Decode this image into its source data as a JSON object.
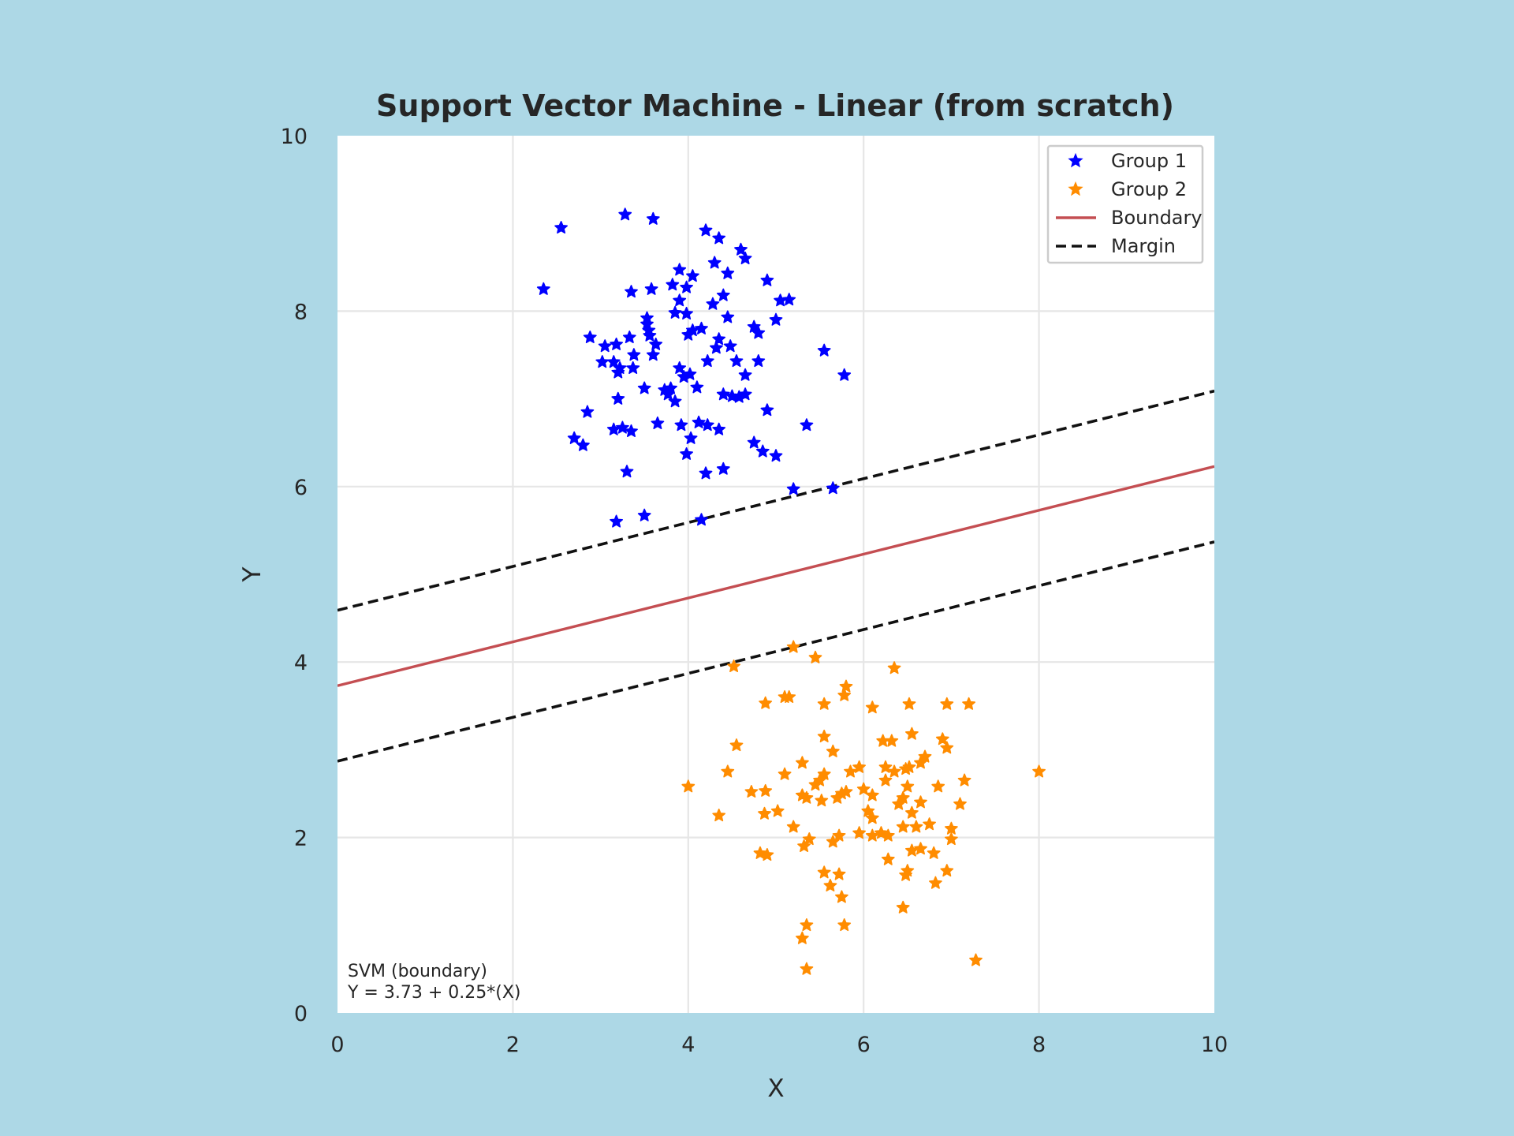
{
  "colors": {
    "background": "#add8e6",
    "plot_bg": "#ffffff",
    "grid": "#e6e6e6",
    "group1": "#0000ff",
    "group2": "#ff8c00",
    "boundary": "#c44e52",
    "margin": "#111111"
  },
  "chart_data": {
    "type": "scatter",
    "title": "Support Vector Machine - Linear (from scratch)",
    "xlabel": "X",
    "ylabel": "Y",
    "xlim": [
      0,
      10
    ],
    "ylim": [
      0,
      10
    ],
    "xticks": [
      0,
      2,
      4,
      6,
      8,
      10
    ],
    "yticks": [
      0,
      2,
      4,
      6,
      8,
      10
    ],
    "grid": true,
    "legend_position": "top-right",
    "marker": "star",
    "annotation": [
      "SVM (boundary)",
      "Y = 3.73 + 0.25*(X)"
    ],
    "lines": [
      {
        "name": "Boundary",
        "style": "solid",
        "intercept": 3.73,
        "slope": 0.25
      },
      {
        "name": "Margin",
        "style": "dashed",
        "intercept": 4.59,
        "slope": 0.25
      },
      {
        "name": "Margin",
        "style": "dashed",
        "intercept": 2.87,
        "slope": 0.25
      }
    ],
    "series": [
      {
        "name": "Group 1",
        "points": [
          [
            2.55,
            8.95
          ],
          [
            3.28,
            9.1
          ],
          [
            3.6,
            9.05
          ],
          [
            2.35,
            8.25
          ],
          [
            4.2,
            8.92
          ],
          [
            4.35,
            8.83
          ],
          [
            4.6,
            8.7
          ],
          [
            4.65,
            8.6
          ],
          [
            4.05,
            8.4
          ],
          [
            3.9,
            8.47
          ],
          [
            4.45,
            8.43
          ],
          [
            4.3,
            8.55
          ],
          [
            3.35,
            8.22
          ],
          [
            3.58,
            8.25
          ],
          [
            3.82,
            8.3
          ],
          [
            3.98,
            8.27
          ],
          [
            4.9,
            8.35
          ],
          [
            4.4,
            8.18
          ],
          [
            4.28,
            8.08
          ],
          [
            5.05,
            8.12
          ],
          [
            5.15,
            8.13
          ],
          [
            3.9,
            8.12
          ],
          [
            3.85,
            7.98
          ],
          [
            3.98,
            7.97
          ],
          [
            4.45,
            7.93
          ],
          [
            5.0,
            7.9
          ],
          [
            3.53,
            7.92
          ],
          [
            3.53,
            7.85
          ],
          [
            3.55,
            7.78
          ],
          [
            3.56,
            7.72
          ],
          [
            4.05,
            7.78
          ],
          [
            4.15,
            7.8
          ],
          [
            4.0,
            7.73
          ],
          [
            4.35,
            7.68
          ],
          [
            4.75,
            7.82
          ],
          [
            4.8,
            7.75
          ],
          [
            2.88,
            7.7
          ],
          [
            3.33,
            7.7
          ],
          [
            3.63,
            7.62
          ],
          [
            3.05,
            7.6
          ],
          [
            3.18,
            7.62
          ],
          [
            4.32,
            7.58
          ],
          [
            4.48,
            7.6
          ],
          [
            5.55,
            7.55
          ],
          [
            3.6,
            7.5
          ],
          [
            3.38,
            7.5
          ],
          [
            3.02,
            7.42
          ],
          [
            3.15,
            7.42
          ],
          [
            3.22,
            7.35
          ],
          [
            3.2,
            7.3
          ],
          [
            3.37,
            7.35
          ],
          [
            3.9,
            7.35
          ],
          [
            4.22,
            7.43
          ],
          [
            4.55,
            7.43
          ],
          [
            4.8,
            7.43
          ],
          [
            4.02,
            7.28
          ],
          [
            3.95,
            7.25
          ],
          [
            4.65,
            7.27
          ],
          [
            5.78,
            7.27
          ],
          [
            3.8,
            7.12
          ],
          [
            3.73,
            7.1
          ],
          [
            3.77,
            7.05
          ],
          [
            3.5,
            7.12
          ],
          [
            4.1,
            7.13
          ],
          [
            3.85,
            6.97
          ],
          [
            3.2,
            7.0
          ],
          [
            4.4,
            7.05
          ],
          [
            4.5,
            7.03
          ],
          [
            4.58,
            7.02
          ],
          [
            4.65,
            7.05
          ],
          [
            2.85,
            6.85
          ],
          [
            4.9,
            6.87
          ],
          [
            3.65,
            6.72
          ],
          [
            3.92,
            6.7
          ],
          [
            4.12,
            6.73
          ],
          [
            4.22,
            6.7
          ],
          [
            5.35,
            6.7
          ],
          [
            3.25,
            6.67
          ],
          [
            3.15,
            6.65
          ],
          [
            3.35,
            6.63
          ],
          [
            4.35,
            6.65
          ],
          [
            4.03,
            6.55
          ],
          [
            2.7,
            6.55
          ],
          [
            2.8,
            6.47
          ],
          [
            4.75,
            6.5
          ],
          [
            4.85,
            6.4
          ],
          [
            5.0,
            6.35
          ],
          [
            3.98,
            6.37
          ],
          [
            3.3,
            6.17
          ],
          [
            4.2,
            6.15
          ],
          [
            4.4,
            6.2
          ],
          [
            5.2,
            5.97
          ],
          [
            5.65,
            5.98
          ],
          [
            3.18,
            5.6
          ],
          [
            3.5,
            5.67
          ],
          [
            4.15,
            5.62
          ]
        ]
      },
      {
        "name": "Group 2",
        "points": [
          [
            5.2,
            4.17
          ],
          [
            5.45,
            4.05
          ],
          [
            4.52,
            3.95
          ],
          [
            6.35,
            3.93
          ],
          [
            5.8,
            3.72
          ],
          [
            5.78,
            3.62
          ],
          [
            5.1,
            3.6
          ],
          [
            5.15,
            3.6
          ],
          [
            4.88,
            3.53
          ],
          [
            5.55,
            3.52
          ],
          [
            6.1,
            3.48
          ],
          [
            6.52,
            3.52
          ],
          [
            6.95,
            3.52
          ],
          [
            7.2,
            3.52
          ],
          [
            5.55,
            3.15
          ],
          [
            6.22,
            3.1
          ],
          [
            6.32,
            3.1
          ],
          [
            6.55,
            3.18
          ],
          [
            6.9,
            3.12
          ],
          [
            4.55,
            3.05
          ],
          [
            5.65,
            2.98
          ],
          [
            6.95,
            3.02
          ],
          [
            6.7,
            2.92
          ],
          [
            5.3,
            2.85
          ],
          [
            5.95,
            2.8
          ],
          [
            6.25,
            2.8
          ],
          [
            6.48,
            2.78
          ],
          [
            6.35,
            2.75
          ],
          [
            6.52,
            2.8
          ],
          [
            6.65,
            2.85
          ],
          [
            5.85,
            2.75
          ],
          [
            5.1,
            2.72
          ],
          [
            5.55,
            2.72
          ],
          [
            4.45,
            2.75
          ],
          [
            8.0,
            2.75
          ],
          [
            5.5,
            2.65
          ],
          [
            5.45,
            2.6
          ],
          [
            6.25,
            2.65
          ],
          [
            6.5,
            2.58
          ],
          [
            6.85,
            2.58
          ],
          [
            7.15,
            2.65
          ],
          [
            4.0,
            2.58
          ],
          [
            4.72,
            2.52
          ],
          [
            4.88,
            2.53
          ],
          [
            5.75,
            2.5
          ],
          [
            5.8,
            2.52
          ],
          [
            5.7,
            2.45
          ],
          [
            5.3,
            2.48
          ],
          [
            5.35,
            2.45
          ],
          [
            5.52,
            2.42
          ],
          [
            6.0,
            2.55
          ],
          [
            6.1,
            2.48
          ],
          [
            6.45,
            2.45
          ],
          [
            6.4,
            2.38
          ],
          [
            6.65,
            2.4
          ],
          [
            7.1,
            2.38
          ],
          [
            4.35,
            2.25
          ],
          [
            4.87,
            2.27
          ],
          [
            5.02,
            2.3
          ],
          [
            6.05,
            2.3
          ],
          [
            6.1,
            2.22
          ],
          [
            6.55,
            2.28
          ],
          [
            6.45,
            2.12
          ],
          [
            6.6,
            2.12
          ],
          [
            6.75,
            2.15
          ],
          [
            7.0,
            2.1
          ],
          [
            5.2,
            2.12
          ],
          [
            5.38,
            1.98
          ],
          [
            5.65,
            1.95
          ],
          [
            5.72,
            2.02
          ],
          [
            5.95,
            2.05
          ],
          [
            6.1,
            2.02
          ],
          [
            6.2,
            2.05
          ],
          [
            6.28,
            2.02
          ],
          [
            7.0,
            1.98
          ],
          [
            5.32,
            1.9
          ],
          [
            4.82,
            1.82
          ],
          [
            4.9,
            1.8
          ],
          [
            6.55,
            1.85
          ],
          [
            6.65,
            1.87
          ],
          [
            6.8,
            1.82
          ],
          [
            6.28,
            1.75
          ],
          [
            5.55,
            1.6
          ],
          [
            5.72,
            1.58
          ],
          [
            6.5,
            1.62
          ],
          [
            6.48,
            1.57
          ],
          [
            6.95,
            1.62
          ],
          [
            6.82,
            1.48
          ],
          [
            5.62,
            1.45
          ],
          [
            5.75,
            1.32
          ],
          [
            6.45,
            1.2
          ],
          [
            5.35,
            1.0
          ],
          [
            5.78,
            1.0
          ],
          [
            5.3,
            0.85
          ],
          [
            7.28,
            0.6
          ],
          [
            5.35,
            0.5
          ]
        ]
      }
    ]
  }
}
